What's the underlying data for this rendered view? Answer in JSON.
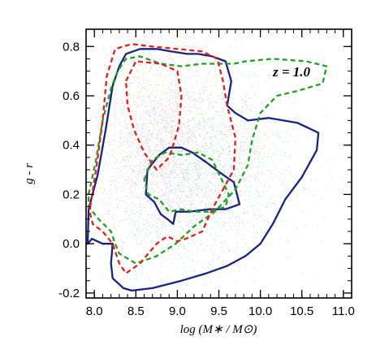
{
  "chart_data": {
    "type": "scatter",
    "xlabel": "log (M∗ / M⊙)",
    "ylabel": "g - r",
    "annotation": "z = 1.0",
    "xlim": [
      7.9,
      11.1
    ],
    "ylim": [
      -0.22,
      0.87
    ],
    "x_ticks": [
      "8.0",
      "8.5",
      "9.0",
      "9.5",
      "10.0",
      "10.5",
      "11.0"
    ],
    "y_ticks": [
      "-0.2",
      "0.0",
      "0.2",
      "0.4",
      "0.6",
      "0.8"
    ],
    "grid": false,
    "colors": {
      "blue": "#1a237e",
      "green": "#23a023",
      "red": "#e02020",
      "scatter_blue": "#8fa0d8",
      "scatter_green": "#8dd08d",
      "scatter_red": "#f0a0a0"
    },
    "contours": [
      {
        "color": "blue",
        "style": "solid",
        "points": [
          [
            7.93,
            0.14
          ],
          [
            8.04,
            0.28
          ],
          [
            8.14,
            0.47
          ],
          [
            8.22,
            0.64
          ],
          [
            8.3,
            0.72
          ],
          [
            8.38,
            0.77
          ],
          [
            8.55,
            0.79
          ],
          [
            8.75,
            0.79
          ],
          [
            8.92,
            0.78
          ],
          [
            9.12,
            0.77
          ],
          [
            9.25,
            0.77
          ],
          [
            9.42,
            0.76
          ],
          [
            9.58,
            0.74
          ],
          [
            9.65,
            0.66
          ],
          [
            9.6,
            0.56
          ],
          [
            9.7,
            0.53
          ],
          [
            9.85,
            0.5
          ],
          [
            10.1,
            0.51
          ],
          [
            10.45,
            0.49
          ],
          [
            10.7,
            0.45
          ],
          [
            10.68,
            0.38
          ],
          [
            10.5,
            0.27
          ],
          [
            10.3,
            0.18
          ],
          [
            10.15,
            0.08
          ],
          [
            10.0,
            0.0
          ],
          [
            9.82,
            -0.05
          ],
          [
            9.6,
            -0.09
          ],
          [
            9.35,
            -0.12
          ],
          [
            9.05,
            -0.15
          ],
          [
            8.7,
            -0.18
          ],
          [
            8.45,
            -0.19
          ],
          [
            8.35,
            -0.18
          ],
          [
            8.22,
            -0.14
          ],
          [
            8.2,
            -0.08
          ],
          [
            8.22,
            0.0
          ],
          [
            8.1,
            0.0
          ],
          [
            7.97,
            0.02
          ],
          [
            7.92,
            0.0
          ]
        ]
      },
      {
        "color": "blue",
        "style": "solid",
        "points": [
          [
            8.62,
            0.2
          ],
          [
            8.64,
            0.3
          ],
          [
            8.78,
            0.36
          ],
          [
            8.9,
            0.39
          ],
          [
            9.05,
            0.39
          ],
          [
            9.18,
            0.37
          ],
          [
            9.35,
            0.33
          ],
          [
            9.55,
            0.28
          ],
          [
            9.68,
            0.25
          ],
          [
            9.75,
            0.16
          ],
          [
            9.58,
            0.14
          ],
          [
            9.38,
            0.14
          ],
          [
            9.15,
            0.13
          ],
          [
            8.98,
            0.13
          ],
          [
            8.95,
            0.08
          ],
          [
            8.88,
            0.1
          ],
          [
            8.8,
            0.12
          ],
          [
            8.72,
            0.17
          ]
        ]
      },
      {
        "color": "green",
        "style": "dashed",
        "points": [
          [
            7.93,
            0.2
          ],
          [
            8.02,
            0.34
          ],
          [
            8.1,
            0.5
          ],
          [
            8.2,
            0.63
          ],
          [
            8.28,
            0.7
          ],
          [
            8.38,
            0.75
          ],
          [
            8.55,
            0.76
          ],
          [
            8.8,
            0.73
          ],
          [
            9.05,
            0.72
          ],
          [
            9.3,
            0.73
          ],
          [
            9.5,
            0.73
          ],
          [
            9.68,
            0.73
          ],
          [
            9.82,
            0.74
          ],
          [
            10.15,
            0.75
          ],
          [
            10.55,
            0.74
          ],
          [
            10.8,
            0.72
          ],
          [
            10.75,
            0.65
          ],
          [
            10.45,
            0.62
          ],
          [
            10.2,
            0.6
          ],
          [
            10.0,
            0.53
          ],
          [
            9.9,
            0.42
          ],
          [
            9.85,
            0.32
          ],
          [
            9.7,
            0.22
          ],
          [
            9.45,
            0.13
          ],
          [
            9.2,
            0.07
          ],
          [
            8.98,
            0.0
          ],
          [
            8.75,
            -0.05
          ],
          [
            8.5,
            -0.08
          ],
          [
            8.4,
            -0.06
          ],
          [
            8.3,
            -0.04
          ],
          [
            8.25,
            0.0
          ],
          [
            8.2,
            0.05
          ],
          [
            8.05,
            0.1
          ],
          [
            7.93,
            0.15
          ]
        ]
      },
      {
        "color": "green",
        "style": "dashed",
        "points": [
          [
            8.6,
            0.26
          ],
          [
            8.7,
            0.34
          ],
          [
            8.85,
            0.37
          ],
          [
            9.05,
            0.36
          ],
          [
            9.25,
            0.37
          ],
          [
            9.42,
            0.34
          ],
          [
            9.52,
            0.27
          ],
          [
            9.62,
            0.2
          ],
          [
            9.58,
            0.15
          ],
          [
            9.4,
            0.13
          ],
          [
            9.2,
            0.13
          ],
          [
            9.05,
            0.14
          ],
          [
            8.9,
            0.13
          ],
          [
            8.78,
            0.18
          ],
          [
            8.65,
            0.2
          ]
        ]
      },
      {
        "color": "red",
        "style": "dashed",
        "points": [
          [
            7.95,
            0.15
          ],
          [
            8.02,
            0.3
          ],
          [
            8.1,
            0.5
          ],
          [
            8.15,
            0.68
          ],
          [
            8.25,
            0.79
          ],
          [
            8.45,
            0.81
          ],
          [
            8.7,
            0.8
          ],
          [
            9.0,
            0.79
          ],
          [
            9.3,
            0.78
          ],
          [
            9.48,
            0.75
          ],
          [
            9.55,
            0.66
          ],
          [
            9.6,
            0.56
          ],
          [
            9.7,
            0.43
          ],
          [
            9.68,
            0.3
          ],
          [
            9.55,
            0.22
          ],
          [
            9.42,
            0.14
          ],
          [
            9.3,
            0.05
          ],
          [
            9.1,
            0.02
          ],
          [
            9.0,
            0.01
          ],
          [
            8.88,
            0.03
          ],
          [
            8.75,
            0.0
          ],
          [
            8.55,
            -0.08
          ],
          [
            8.38,
            -0.12
          ],
          [
            8.3,
            -0.08
          ],
          [
            8.22,
            0.0
          ],
          [
            8.1,
            0.05
          ],
          [
            7.98,
            0.08
          ],
          [
            7.95,
            0.12
          ]
        ]
      },
      {
        "color": "red",
        "style": "dashed",
        "points": [
          [
            8.38,
            0.66
          ],
          [
            8.5,
            0.74
          ],
          [
            8.8,
            0.73
          ],
          [
            9.0,
            0.7
          ],
          [
            9.05,
            0.6
          ],
          [
            9.02,
            0.48
          ],
          [
            8.95,
            0.4
          ],
          [
            8.9,
            0.35
          ],
          [
            8.75,
            0.3
          ],
          [
            8.6,
            0.37
          ],
          [
            8.48,
            0.46
          ],
          [
            8.4,
            0.56
          ]
        ]
      }
    ]
  }
}
